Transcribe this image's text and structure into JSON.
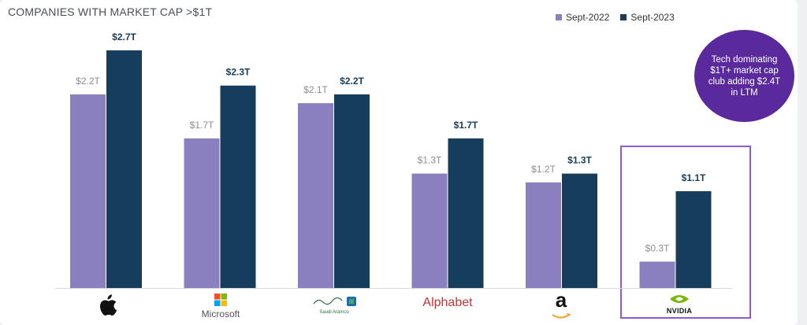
{
  "title": "COMPANIES WITH MARKET CAP >$1T",
  "legend": [
    {
      "label": "Sept-2022",
      "color": "#8a80c0"
    },
    {
      "label": "Sept-2023",
      "color": "#163d5c"
    }
  ],
  "callout": "Tech dominating $1T+ market cap club adding $2.4T in LTM",
  "colors": {
    "highlight": "#8a5cd0",
    "callout_bg": "#5a2a9c",
    "label_2022": "#8e8e8e",
    "label_2023": "#163d5c"
  },
  "logos": {
    "apple": "",
    "microsoft": "Microsoft",
    "aramco": "Saudi Aramco",
    "alphabet": "Alphabet",
    "amazon": "a",
    "nvidia": "NVIDIA"
  },
  "chart_data": {
    "type": "bar",
    "categories": [
      "Apple",
      "Microsoft",
      "Saudi Aramco",
      "Alphabet",
      "Amazon",
      "NVIDIA"
    ],
    "series": [
      {
        "name": "Sept-2022",
        "values": [
          2.2,
          1.7,
          2.1,
          1.3,
          1.2,
          0.3
        ],
        "labels": [
          "$2.2T",
          "$1.7T",
          "$2.1T",
          "$1.3T",
          "$1.2T",
          "$0.3T"
        ]
      },
      {
        "name": "Sept-2023",
        "values": [
          2.7,
          2.3,
          2.2,
          1.7,
          1.3,
          1.1
        ],
        "labels": [
          "$2.7T",
          "$2.3T",
          "$2.2T",
          "$1.7T",
          "$1.3T",
          "$1.1T"
        ]
      }
    ],
    "unit": "$T",
    "ylim": [
      0,
      2.7
    ],
    "grid": false,
    "legend_position": "top-right",
    "highlighted_category": "NVIDIA"
  }
}
